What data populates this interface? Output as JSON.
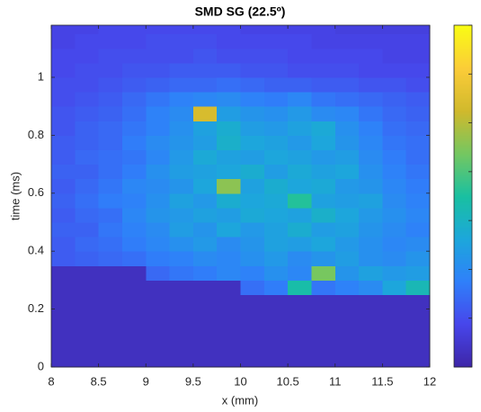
{
  "chart_data": {
    "type": "heatmap",
    "title": "SMD SG (22.5º)",
    "x_label": "x (mm)",
    "y_label": "time (ms)",
    "xlim": [
      8,
      12
    ],
    "xticks": [
      8,
      8.5,
      9,
      9.5,
      10,
      10.5,
      11,
      11.5,
      12
    ],
    "ylim": [
      0,
      1.18
    ],
    "yticks": [
      0,
      0.2,
      0.4,
      0.6,
      0.8,
      1
    ],
    "clim": [
      0,
      7
    ],
    "colormap": [
      "#3e26a8",
      "#4746eb",
      "#2f80fa",
      "#1ca7db",
      "#19c0a1",
      "#74c761",
      "#d0b92c",
      "#fbcc38",
      "#f9fb15"
    ],
    "x_edges": [
      8,
      8.25,
      8.5,
      8.75,
      9,
      9.25,
      9.5,
      9.75,
      10,
      10.25,
      10.5,
      10.75,
      11,
      11.25,
      11.5,
      11.75,
      12
    ],
    "y_edges": [
      0,
      0.05,
      0.1,
      0.15,
      0.2,
      0.25,
      0.3,
      0.35,
      0.4,
      0.45,
      0.5,
      0.55,
      0.6,
      0.65,
      0.7,
      0.75,
      0.8,
      0.85,
      0.9,
      0.95,
      1,
      1.05,
      1.1,
      1.15,
      1.18
    ],
    "z": [
      [
        0.3,
        0.3,
        0.3,
        0.3,
        0.3,
        0.3,
        0.3,
        0.3,
        0.3,
        0.3,
        0.3,
        0.3,
        0.3,
        0.3,
        0.3,
        0.3
      ],
      [
        0.3,
        0.3,
        0.3,
        0.3,
        0.3,
        0.3,
        0.3,
        0.3,
        0.3,
        0.3,
        0.3,
        0.3,
        0.3,
        0.3,
        0.3,
        0.3
      ],
      [
        0.3,
        0.3,
        0.3,
        0.3,
        0.3,
        0.3,
        0.3,
        0.3,
        0.3,
        0.3,
        0.3,
        0.3,
        0.3,
        0.3,
        0.3,
        0.3
      ],
      [
        0.3,
        0.3,
        0.3,
        0.3,
        0.3,
        0.3,
        0.3,
        0.3,
        0.3,
        0.3,
        0.3,
        0.3,
        0.3,
        0.3,
        0.3,
        0.3
      ],
      [
        0.3,
        0.3,
        0.3,
        0.3,
        0.3,
        0.3,
        0.3,
        0.3,
        0.3,
        0.3,
        0.3,
        0.3,
        0.3,
        0.3,
        0.3,
        0.3
      ],
      [
        0.3,
        0.3,
        0.3,
        0.3,
        0.3,
        0.3,
        0.3,
        0.3,
        1.5,
        1.7,
        3.4,
        1.6,
        1.8,
        2.0,
        2.6,
        3.2
      ],
      [
        0.3,
        0.3,
        0.3,
        0.3,
        1.4,
        1.6,
        1.7,
        1.9,
        1.8,
        2.1,
        1.9,
        4.4,
        2.2,
        2.5,
        2.3,
        2.4
      ],
      [
        1.2,
        1.3,
        1.4,
        1.5,
        1.7,
        1.8,
        2.0,
        1.9,
        2.1,
        2.3,
        2.0,
        2.2,
        2.4,
        2.1,
        2.0,
        2.2
      ],
      [
        1.2,
        1.4,
        1.5,
        1.7,
        1.9,
        2.1,
        2.3,
        2.0,
        2.2,
        2.5,
        2.4,
        2.6,
        2.3,
        2.1,
        1.9,
        2.0
      ],
      [
        1.3,
        1.3,
        1.6,
        1.8,
        2.0,
        2.4,
        2.2,
        2.6,
        2.3,
        2.5,
        2.8,
        2.4,
        2.5,
        2.2,
        2.0,
        1.8
      ],
      [
        1.2,
        1.4,
        1.5,
        1.9,
        2.2,
        2.3,
        2.5,
        2.4,
        2.7,
        2.6,
        2.5,
        2.9,
        2.6,
        2.3,
        2.1,
        1.9
      ],
      [
        1.3,
        1.5,
        1.7,
        1.8,
        2.1,
        2.5,
        2.3,
        2.8,
        2.6,
        2.7,
        3.6,
        2.5,
        2.4,
        2.5,
        2.0,
        1.8
      ],
      [
        1.2,
        1.4,
        1.6,
        1.9,
        2.0,
        2.2,
        2.6,
        4.6,
        2.5,
        2.8,
        2.6,
        2.7,
        2.3,
        2.2,
        1.9,
        1.7
      ],
      [
        1.3,
        1.3,
        1.5,
        1.7,
        2.1,
        2.4,
        2.5,
        2.6,
        2.8,
        2.4,
        2.7,
        2.5,
        2.6,
        2.1,
        1.8,
        1.6
      ],
      [
        1.2,
        1.4,
        1.5,
        1.6,
        1.9,
        2.3,
        2.7,
        2.5,
        2.4,
        2.6,
        2.5,
        2.3,
        2.4,
        2.0,
        1.7,
        1.5
      ],
      [
        1.2,
        1.3,
        1.4,
        1.7,
        2.0,
        2.2,
        2.4,
        2.9,
        2.6,
        2.5,
        2.3,
        2.6,
        2.2,
        1.9,
        1.6,
        1.5
      ],
      [
        1.1,
        1.3,
        1.4,
        1.6,
        1.8,
        2.1,
        2.5,
        2.8,
        2.4,
        2.3,
        2.5,
        2.7,
        2.1,
        1.8,
        1.5,
        1.4
      ],
      [
        1.1,
        1.2,
        1.3,
        1.5,
        1.8,
        2.0,
        5.4,
        2.4,
        2.2,
        2.1,
        2.3,
        2.0,
        1.9,
        1.6,
        1.4,
        1.3
      ],
      [
        1.0,
        1.1,
        1.2,
        1.4,
        1.6,
        1.8,
        1.9,
        2.0,
        1.8,
        1.7,
        1.9,
        1.6,
        1.5,
        1.4,
        1.3,
        1.2
      ],
      [
        1.0,
        1.0,
        1.1,
        1.2,
        1.3,
        1.4,
        1.4,
        1.5,
        1.4,
        1.3,
        1.3,
        1.2,
        1.2,
        1.1,
        1.1,
        1.0
      ],
      [
        0.9,
        1.0,
        1.0,
        1.1,
        1.1,
        1.2,
        1.2,
        1.2,
        1.1,
        1.1,
        1.0,
        1.0,
        1.0,
        0.9,
        0.9,
        0.9
      ],
      [
        0.9,
        0.9,
        1.0,
        1.0,
        1.0,
        1.0,
        1.1,
        1.0,
        1.0,
        1.0,
        0.9,
        0.9,
        0.9,
        0.9,
        0.8,
        0.8
      ],
      [
        0.8,
        0.9,
        0.9,
        0.9,
        1.0,
        1.0,
        1.0,
        0.9,
        0.9,
        0.9,
        0.9,
        0.8,
        0.8,
        0.8,
        0.8,
        0.8
      ],
      [
        0.8,
        0.8,
        0.9,
        0.9,
        0.9,
        0.9,
        0.9,
        0.9,
        0.8,
        0.8,
        0.8,
        0.8,
        0.7,
        0.7,
        0.7,
        0.7
      ]
    ]
  }
}
